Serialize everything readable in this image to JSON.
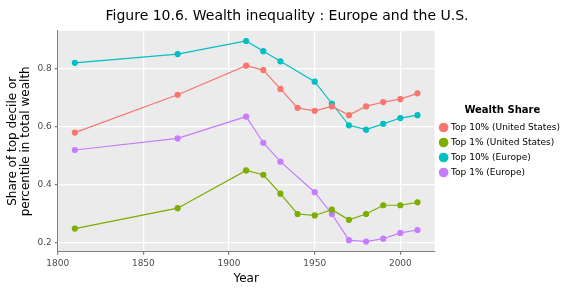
{
  "chart_data": {
    "type": "line",
    "title": "Figure 10.6. Wealth inequality : Europe and the U.S.",
    "x_label": "Year",
    "y_label": [
      "Share of top decile or",
      "percentile in total wealth"
    ],
    "legend_title": "Wealth Share",
    "x": [
      1810,
      1870,
      1910,
      1920,
      1930,
      1940,
      1950,
      1960,
      1970,
      1980,
      1990,
      2000,
      2010
    ],
    "series": [
      {
        "name": "Top 10% (United States)",
        "color": "#F8766D",
        "marker": "circle",
        "values": [
          0.58,
          0.71,
          0.81,
          0.795,
          0.73,
          0.665,
          0.655,
          0.67,
          0.64,
          0.67,
          0.685,
          0.695,
          0.715
        ]
      },
      {
        "name": "Top 1% (United States)",
        "color": "#7CAE00",
        "marker": "circle",
        "values": [
          0.25,
          0.32,
          0.45,
          0.435,
          0.37,
          0.3,
          0.295,
          0.315,
          0.28,
          0.3,
          0.33,
          0.33,
          0.34
        ]
      },
      {
        "name": "Top 10% (Europe)",
        "color": "#00BFC4",
        "marker": "circle",
        "values": [
          0.82,
          0.85,
          0.895,
          0.86,
          0.825,
          null,
          0.755,
          0.68,
          0.605,
          0.59,
          0.61,
          0.63,
          0.64
        ]
      },
      {
        "name": "Top 1% (Europe)",
        "color": "#C77CFF",
        "marker": "circle",
        "values": [
          0.52,
          0.56,
          0.635,
          0.545,
          0.48,
          null,
          0.375,
          0.3,
          0.21,
          0.205,
          0.215,
          0.235,
          0.245
        ]
      }
    ],
    "xlim": [
      1800,
      2020
    ],
    "xticks": [
      1800,
      1850,
      1900,
      1950,
      2000
    ],
    "ylim": [
      0.17,
      0.93
    ],
    "yticks": [
      0.2,
      0.4,
      0.6,
      0.8
    ],
    "grid": true,
    "legend": "right"
  }
}
